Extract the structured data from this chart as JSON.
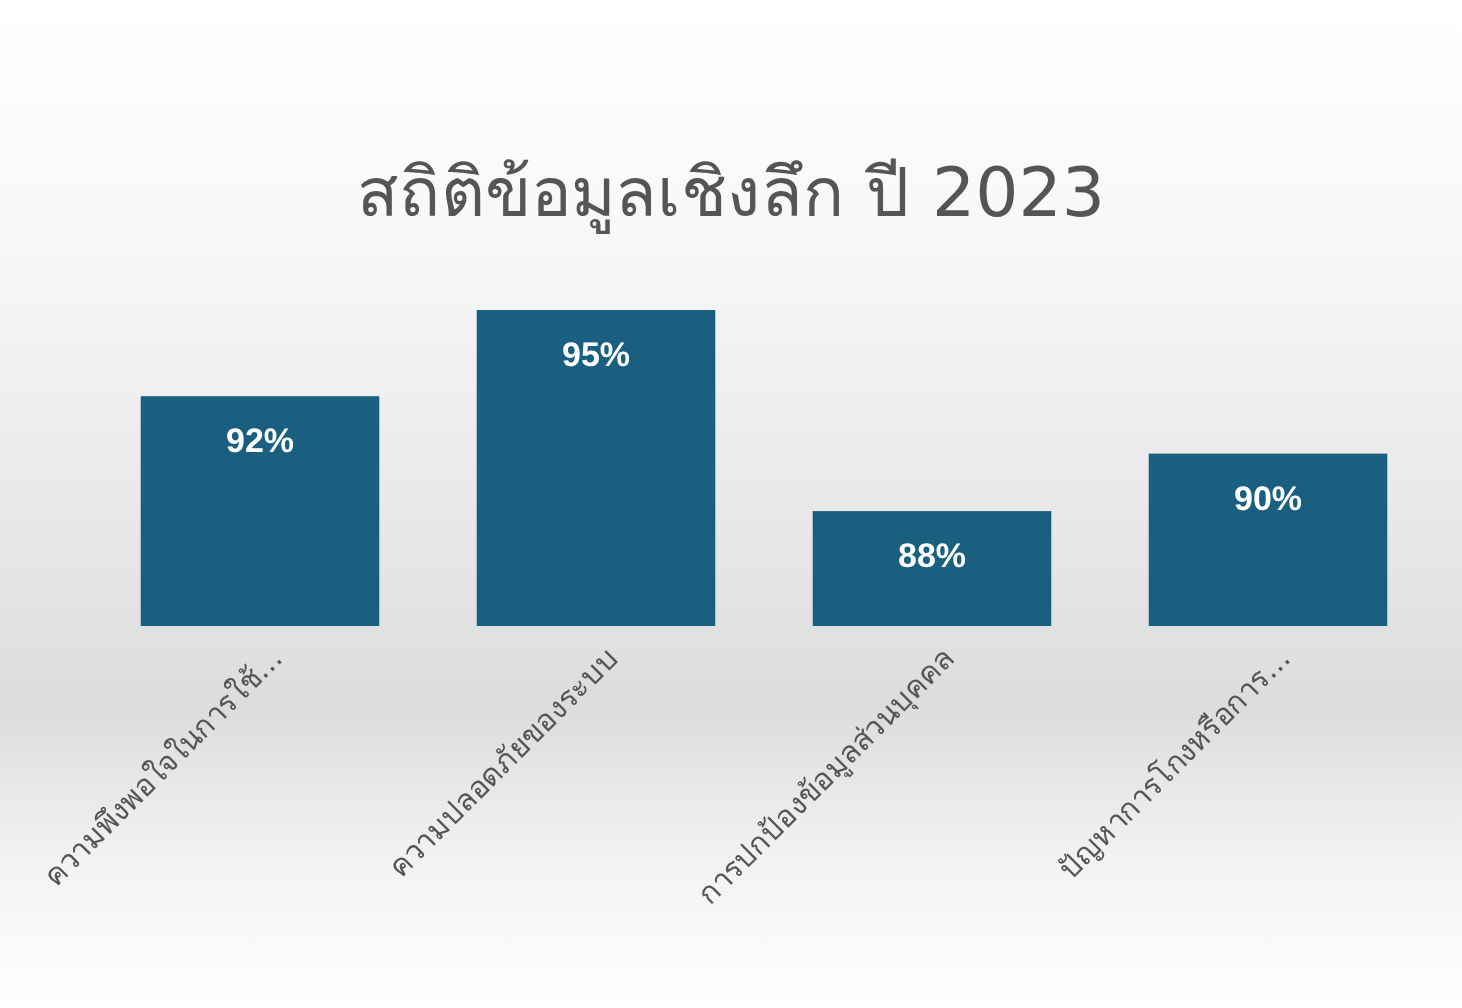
{
  "chart_data": {
    "type": "bar",
    "title": "สถิติข้อมูลเชิงลึก ปี 2023",
    "categories": [
      "ความพึงพอใจในการใช้...",
      "ความปลอดภัยของระบบ",
      "การปกป้องข้อมูลส่วนบุคคล",
      "ปัญหาการโกงหรือการ..."
    ],
    "values": [
      92,
      95,
      88,
      90
    ],
    "value_labels": [
      "92%",
      "95%",
      "88%",
      "90%"
    ],
    "color": "#1a5e80",
    "ylim": [
      84,
      95
    ],
    "tick_labels": "x"
  }
}
